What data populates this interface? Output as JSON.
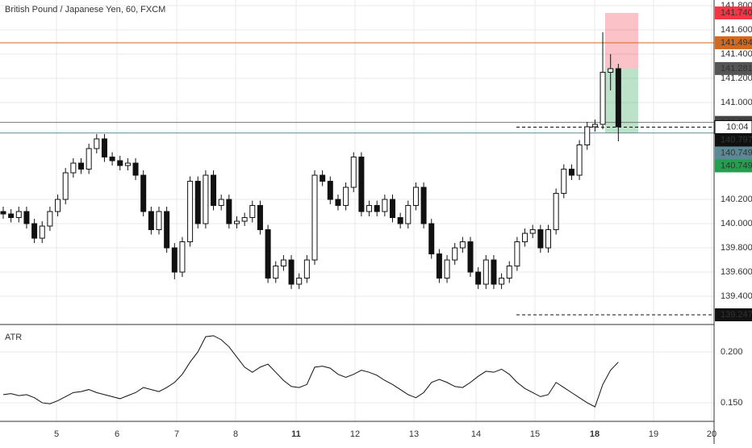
{
  "chart_data": {
    "type": "candlestick",
    "title": "British Pound / Japanese Yen, 60, FXCM",
    "candles": [
      [
        140.1,
        140.14,
        140.04,
        140.08
      ],
      [
        140.08,
        140.12,
        140.01,
        140.05
      ],
      [
        140.05,
        140.14,
        140.01,
        140.1
      ],
      [
        140.1,
        140.14,
        139.96,
        140.0
      ],
      [
        140.0,
        140.04,
        139.84,
        139.88
      ],
      [
        139.88,
        140.02,
        139.84,
        139.98
      ],
      [
        139.98,
        140.14,
        139.94,
        140.1
      ],
      [
        140.1,
        140.24,
        140.06,
        140.2
      ],
      [
        140.2,
        140.46,
        140.16,
        140.42
      ],
      [
        140.42,
        140.54,
        140.38,
        140.5
      ],
      [
        140.5,
        140.54,
        140.41,
        140.45
      ],
      [
        140.45,
        140.66,
        140.41,
        140.62
      ],
      [
        140.62,
        140.74,
        140.58,
        140.7
      ],
      [
        140.7,
        140.74,
        140.51,
        140.55
      ],
      [
        140.55,
        140.59,
        140.48,
        140.52
      ],
      [
        140.52,
        140.56,
        140.44,
        140.48
      ],
      [
        140.48,
        140.54,
        140.44,
        140.5
      ],
      [
        140.5,
        140.54,
        140.36,
        140.4
      ],
      [
        140.4,
        140.44,
        140.06,
        140.1
      ],
      [
        140.1,
        140.14,
        139.91,
        139.95
      ],
      [
        139.95,
        140.14,
        139.91,
        140.1
      ],
      [
        140.1,
        140.14,
        139.76,
        139.8
      ],
      [
        139.8,
        139.84,
        139.54,
        139.6
      ],
      [
        139.6,
        139.89,
        139.56,
        139.85
      ],
      [
        139.85,
        140.39,
        139.81,
        140.35
      ],
      [
        140.35,
        140.39,
        139.96,
        140.0
      ],
      [
        140.0,
        140.44,
        139.96,
        140.4
      ],
      [
        140.4,
        140.44,
        140.11,
        140.15
      ],
      [
        140.15,
        140.24,
        140.11,
        140.2
      ],
      [
        140.2,
        140.24,
        139.96,
        140.0
      ],
      [
        140.0,
        140.06,
        139.96,
        140.02
      ],
      [
        140.02,
        140.09,
        139.98,
        140.05
      ],
      [
        140.05,
        140.19,
        140.01,
        140.15
      ],
      [
        140.15,
        140.19,
        139.91,
        139.95
      ],
      [
        139.95,
        139.99,
        139.51,
        139.55
      ],
      [
        139.55,
        139.69,
        139.51,
        139.65
      ],
      [
        139.65,
        139.74,
        139.61,
        139.7
      ],
      [
        139.7,
        139.74,
        139.46,
        139.5
      ],
      [
        139.5,
        139.59,
        139.46,
        139.55
      ],
      [
        139.55,
        139.74,
        139.51,
        139.7
      ],
      [
        139.7,
        140.44,
        139.66,
        140.4
      ],
      [
        140.4,
        140.44,
        140.31,
        140.35
      ],
      [
        140.35,
        140.39,
        140.16,
        140.2
      ],
      [
        140.2,
        140.24,
        140.11,
        140.15
      ],
      [
        140.15,
        140.34,
        140.11,
        140.3
      ],
      [
        140.3,
        140.59,
        140.26,
        140.55
      ],
      [
        140.55,
        140.59,
        140.06,
        140.1
      ],
      [
        140.1,
        140.19,
        140.06,
        140.15
      ],
      [
        140.15,
        140.19,
        140.06,
        140.1
      ],
      [
        140.1,
        140.24,
        140.06,
        140.2
      ],
      [
        140.2,
        140.24,
        140.01,
        140.05
      ],
      [
        140.05,
        140.09,
        139.96,
        140.0
      ],
      [
        140.0,
        140.19,
        139.96,
        140.15
      ],
      [
        140.15,
        140.34,
        140.11,
        140.3
      ],
      [
        140.3,
        140.34,
        139.96,
        140.0
      ],
      [
        140.0,
        140.04,
        139.71,
        139.75
      ],
      [
        139.75,
        139.79,
        139.51,
        139.55
      ],
      [
        139.55,
        139.74,
        139.51,
        139.7
      ],
      [
        139.7,
        139.84,
        139.66,
        139.8
      ],
      [
        139.8,
        139.89,
        139.76,
        139.85
      ],
      [
        139.85,
        139.89,
        139.56,
        139.6
      ],
      [
        139.6,
        139.64,
        139.46,
        139.5
      ],
      [
        139.5,
        139.74,
        139.46,
        139.7
      ],
      [
        139.7,
        139.74,
        139.46,
        139.5
      ],
      [
        139.5,
        139.59,
        139.46,
        139.55
      ],
      [
        139.55,
        139.69,
        139.51,
        139.65
      ],
      [
        139.65,
        139.89,
        139.61,
        139.85
      ],
      [
        139.85,
        139.96,
        139.81,
        139.92
      ],
      [
        139.92,
        139.99,
        139.88,
        139.95
      ],
      [
        139.95,
        139.99,
        139.76,
        139.8
      ],
      [
        139.8,
        139.99,
        139.76,
        139.95
      ],
      [
        139.95,
        140.29,
        139.91,
        140.25
      ],
      [
        140.25,
        140.49,
        140.21,
        140.45
      ],
      [
        140.45,
        140.49,
        140.36,
        140.4
      ],
      [
        140.4,
        140.69,
        140.36,
        140.65
      ],
      [
        140.65,
        140.84,
        140.61,
        140.8
      ],
      [
        140.8,
        140.86,
        140.76,
        140.82
      ],
      [
        140.82,
        141.58,
        140.78,
        141.25
      ],
      [
        141.25,
        141.4,
        141.1,
        141.28
      ],
      [
        141.28,
        141.32,
        140.68,
        140.8
      ]
    ],
    "ylim": [
      139.167,
      141.847
    ],
    "yticks": [
      {
        "value": 139.4,
        "label": "139.400"
      },
      {
        "value": 139.6,
        "label": "139.600"
      },
      {
        "value": 139.8,
        "label": "139.800"
      },
      {
        "value": 140.0,
        "label": "140.000"
      },
      {
        "value": 140.2,
        "label": "140.200"
      },
      {
        "value": 141.0,
        "label": "141.000"
      },
      {
        "value": 141.2,
        "label": "141.200"
      },
      {
        "value": 141.4,
        "label": "141.400"
      },
      {
        "value": 141.6,
        "label": "141.600"
      },
      {
        "value": 141.8,
        "label": "141.800"
      }
    ],
    "price_tags": [
      {
        "value": 141.74,
        "label": "141.740",
        "color": "#f23645"
      },
      {
        "value": 141.494,
        "label": "141.494",
        "color": "#d2691e"
      },
      {
        "value": 141.281,
        "label": "141.281",
        "color": "#555555"
      },
      {
        "value": 140.836,
        "label": "140.836",
        "color": "#444444"
      },
      {
        "value": 140.797,
        "label": "140.797",
        "color": "#111111"
      },
      {
        "value": 140.749,
        "label": "140.749",
        "color": "#5b8a96"
      },
      {
        "value": 140.749,
        "label": "140.749",
        "color": "#22a050"
      },
      {
        "value": 139.247,
        "label": "139.247",
        "color": "#111111"
      }
    ],
    "countdown": "10:04",
    "days": [
      "5",
      "6",
      "7",
      "8",
      "11",
      "12",
      "13",
      "14",
      "15",
      "18",
      "19",
      "20"
    ],
    "atr": {
      "label": "ATR",
      "color": "#111111",
      "values": [
        0.158,
        0.159,
        0.157,
        0.158,
        0.155,
        0.15,
        0.149,
        0.152,
        0.156,
        0.16,
        0.161,
        0.163,
        0.16,
        0.158,
        0.156,
        0.154,
        0.157,
        0.16,
        0.165,
        0.163,
        0.161,
        0.165,
        0.17,
        0.178,
        0.19,
        0.2,
        0.215,
        0.216,
        0.212,
        0.205,
        0.195,
        0.185,
        0.18,
        0.185,
        0.188,
        0.18,
        0.172,
        0.166,
        0.165,
        0.168,
        0.185,
        0.186,
        0.184,
        0.178,
        0.175,
        0.178,
        0.182,
        0.18,
        0.177,
        0.172,
        0.168,
        0.163,
        0.158,
        0.155,
        0.16,
        0.17,
        0.173,
        0.17,
        0.166,
        0.165,
        0.17,
        0.176,
        0.181,
        0.18,
        0.183,
        0.178,
        0.17,
        0.164,
        0.16,
        0.156,
        0.158,
        0.17,
        0.165,
        0.16,
        0.155,
        0.15,
        0.146,
        0.168,
        0.182,
        0.19
      ],
      "ylim": [
        0.1317,
        0.2246
      ],
      "yticks": [
        {
          "value": 0.2,
          "label": "0.200"
        },
        {
          "value": 0.15,
          "label": "0.150"
        }
      ]
    }
  }
}
